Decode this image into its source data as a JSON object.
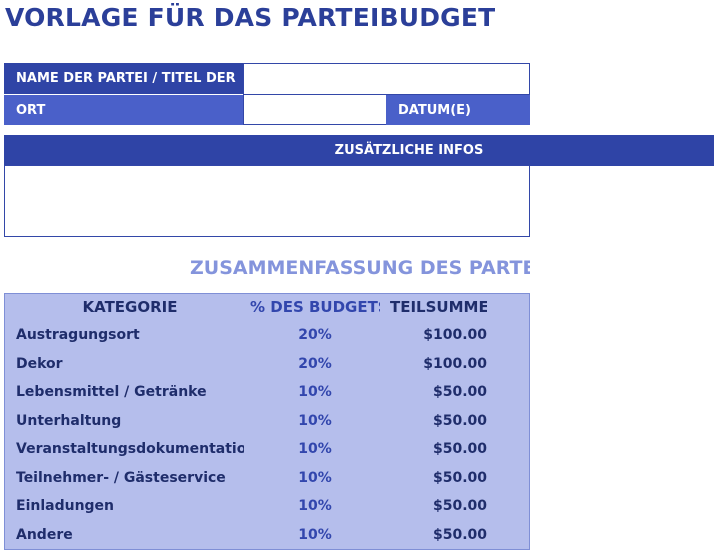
{
  "header": {
    "title": "VORLAGE FÜR DAS PARTEIBUDGET"
  },
  "fields": {
    "name_label": "NAME DER PARTEI / TITEL DER",
    "place_label": "ORT",
    "date_label": "DATUM(E)",
    "info_label": "ZUSÄTZLICHE INFOS"
  },
  "summary": {
    "title": "ZUSAMMENFASSUNG DES PARTEI"
  },
  "table": {
    "columns": [
      "KATEGORIE",
      "% DES BUDGETS",
      "TEILSUMMEN"
    ],
    "rows": [
      [
        "Austragungsort",
        "20%",
        "$100.00"
      ],
      [
        "Dekor",
        "20%",
        "$100.00"
      ],
      [
        "Lebensmittel / Getränke",
        "10%",
        "$50.00"
      ],
      [
        "Unterhaltung",
        "10%",
        "$50.00"
      ],
      [
        "Veranstaltungsdokumentation",
        "10%",
        "$50.00"
      ],
      [
        "Teilnehmer- / Gästeservice",
        "10%",
        "$50.00"
      ],
      [
        "Einladungen",
        "10%",
        "$50.00"
      ],
      [
        "Andere",
        "10%",
        "$50.00"
      ]
    ]
  }
}
